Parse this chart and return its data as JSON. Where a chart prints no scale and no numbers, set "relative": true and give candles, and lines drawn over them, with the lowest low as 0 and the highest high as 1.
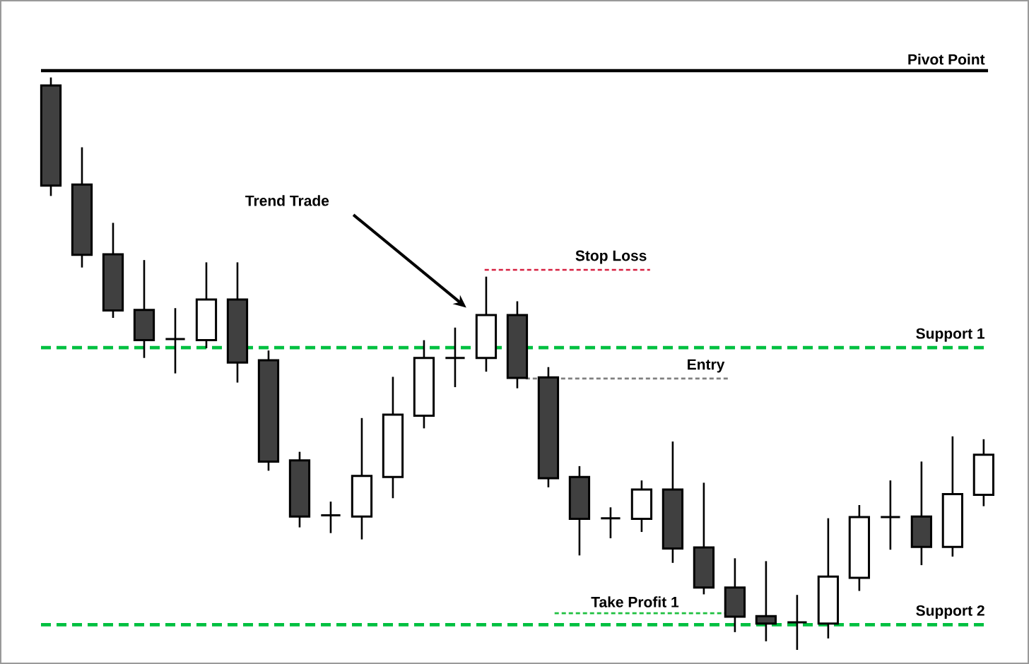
{
  "chart_data": {
    "type": "candlestick",
    "relative": true,
    "categories": [
      null,
      null,
      null,
      null,
      null,
      null,
      null,
      null,
      null,
      null,
      null,
      null,
      null,
      null,
      null,
      null,
      null,
      null,
      null,
      null,
      null,
      null,
      null,
      null,
      null,
      null,
      null,
      null,
      null,
      null,
      null
    ],
    "ohlc": [
      [
        0.986,
        1,
        0.793,
        0.811
      ],
      [
        0.813,
        0.878,
        0.668,
        0.69
      ],
      [
        0.691,
        0.746,
        0.58,
        0.593
      ],
      [
        0.594,
        0.681,
        0.51,
        0.541
      ],
      [
        0.543,
        0.597,
        0.483,
        0.543
      ],
      [
        0.541,
        0.677,
        0.527,
        0.612
      ],
      [
        0.612,
        0.677,
        0.467,
        0.502
      ],
      [
        0.506,
        0.523,
        0.313,
        0.329
      ],
      [
        0.331,
        0.346,
        0.214,
        0.233
      ],
      [
        0.235,
        0.259,
        0.204,
        0.235
      ],
      [
        0.233,
        0.405,
        0.193,
        0.304
      ],
      [
        0.302,
        0.477,
        0.265,
        0.411
      ],
      [
        0.409,
        0.541,
        0.387,
        0.51
      ],
      [
        0.51,
        0.563,
        0.459,
        0.51
      ],
      [
        0.51,
        0.652,
        0.486,
        0.585
      ],
      [
        0.585,
        0.609,
        0.457,
        0.475
      ],
      [
        0.476,
        0.494,
        0.284,
        0.3
      ],
      [
        0.302,
        0.321,
        0.165,
        0.229
      ],
      [
        0.23,
        0.249,
        0.195,
        0.23
      ],
      [
        0.229,
        0.296,
        0.206,
        0.28
      ],
      [
        0.28,
        0.364,
        0.152,
        0.177
      ],
      [
        0.179,
        0.292,
        0.097,
        0.109
      ],
      [
        0.109,
        0.16,
        0.031,
        0.058
      ],
      [
        0.059,
        0.155,
        0.015,
        0.046
      ],
      [
        0.048,
        0.096,
        0,
        0.048
      ],
      [
        0.046,
        0.23,
        0.02,
        0.128
      ],
      [
        0.126,
        0.253,
        0.103,
        0.232
      ],
      [
        0.232,
        0.296,
        0.175,
        0.232
      ],
      [
        0.233,
        0.329,
        0.148,
        0.18
      ],
      [
        0.18,
        0.373,
        0.163,
        0.272
      ],
      [
        0.271,
        0.368,
        0.251,
        0.341
      ]
    ],
    "ref_lines": [
      {
        "axis": "y",
        "value": 1.012,
        "label": "Pivot Point",
        "color": "#000000",
        "line_style": "solid"
      },
      {
        "axis": "y",
        "value": 0.528,
        "label": "Support 1",
        "color": "#00c040",
        "line_style": "dashed"
      },
      {
        "axis": "y",
        "value": 0.044,
        "label": "Support 2",
        "color": "#00c040",
        "line_style": "dashed"
      },
      {
        "axis": "y",
        "value": 0.664,
        "label": "Stop Loss",
        "color": "#d62040",
        "line_style": "dotted"
      },
      {
        "axis": "y",
        "value": 0.474,
        "label": "Entry",
        "color": "#808080",
        "line_style": "dotted"
      },
      {
        "axis": "y",
        "value": 0.064,
        "label": "Take Profit 1",
        "color": "#20c040",
        "line_style": "dotted"
      }
    ],
    "annotations": [
      "Trend Trade"
    ]
  }
}
